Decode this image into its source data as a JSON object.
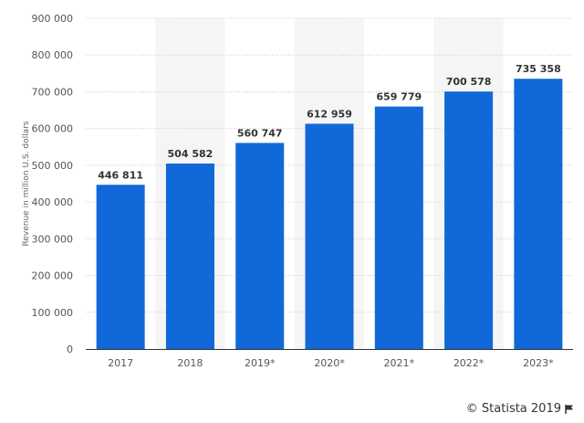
{
  "chart_data": {
    "type": "bar",
    "ylabel": "Revenue in million U.S. dollars",
    "categories": [
      "2017",
      "2018",
      "2019*",
      "2020*",
      "2021*",
      "2022*",
      "2023*"
    ],
    "values": [
      446811,
      504582,
      560747,
      612959,
      659779,
      700578,
      735358
    ],
    "value_labels": [
      "446 811",
      "504 582",
      "560 747",
      "612 959",
      "659 779",
      "700 578",
      "735 358"
    ],
    "ylim": [
      0,
      900000
    ],
    "yticks": [
      0,
      100000,
      200000,
      300000,
      400000,
      500000,
      600000,
      700000,
      800000,
      900000
    ],
    "ytick_labels": [
      "0",
      "100 000",
      "200 000",
      "300 000",
      "400 000",
      "500 000",
      "600 000",
      "700 000",
      "800 000",
      "900 000"
    ],
    "grid": true,
    "alternate_column_shading": true,
    "bar_color": "#1168d9",
    "shade_color": "#f5f5f5"
  },
  "credit": {
    "text": "© Statista 2019",
    "icon": "flag-icon"
  }
}
